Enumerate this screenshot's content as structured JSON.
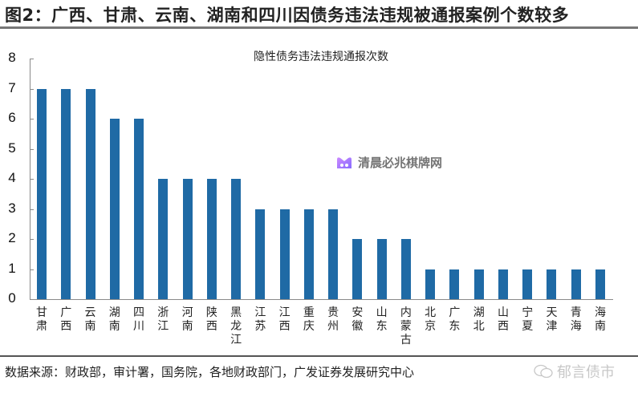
{
  "figure": {
    "title": "图2：广西、甘肃、云南、湖南和四川因债务违法违规被通报案例个数较多",
    "source": "数据来源：财政部，审计署，国务院，各地财政部门，广发证券发展研究中心"
  },
  "watermarks": {
    "center": "清晨必兆棋牌网",
    "bottom_right": "郁言债市"
  },
  "chart_data": {
    "type": "bar",
    "title": "隐性债务违法违规通报次数",
    "xlabel": "",
    "ylabel": "",
    "ylim": [
      0,
      8
    ],
    "yticks": [
      0,
      1,
      2,
      3,
      4,
      5,
      6,
      7,
      8
    ],
    "grid": false,
    "legend": null,
    "bar_color": "#1f6aa5",
    "categories": [
      "甘肃",
      "广西",
      "云南",
      "湖南",
      "四川",
      "浙江",
      "河南",
      "陕西",
      "黑龙江",
      "江苏",
      "江西",
      "重庆",
      "贵州",
      "安徽",
      "山东",
      "内蒙古",
      "北京",
      "广东",
      "湖北",
      "山西",
      "宁夏",
      "天津",
      "青海",
      "海南"
    ],
    "values": [
      7,
      7,
      7,
      6,
      6,
      4,
      4,
      4,
      4,
      3,
      3,
      3,
      3,
      2,
      2,
      2,
      1,
      1,
      1,
      1,
      1,
      1,
      1,
      1
    ]
  }
}
